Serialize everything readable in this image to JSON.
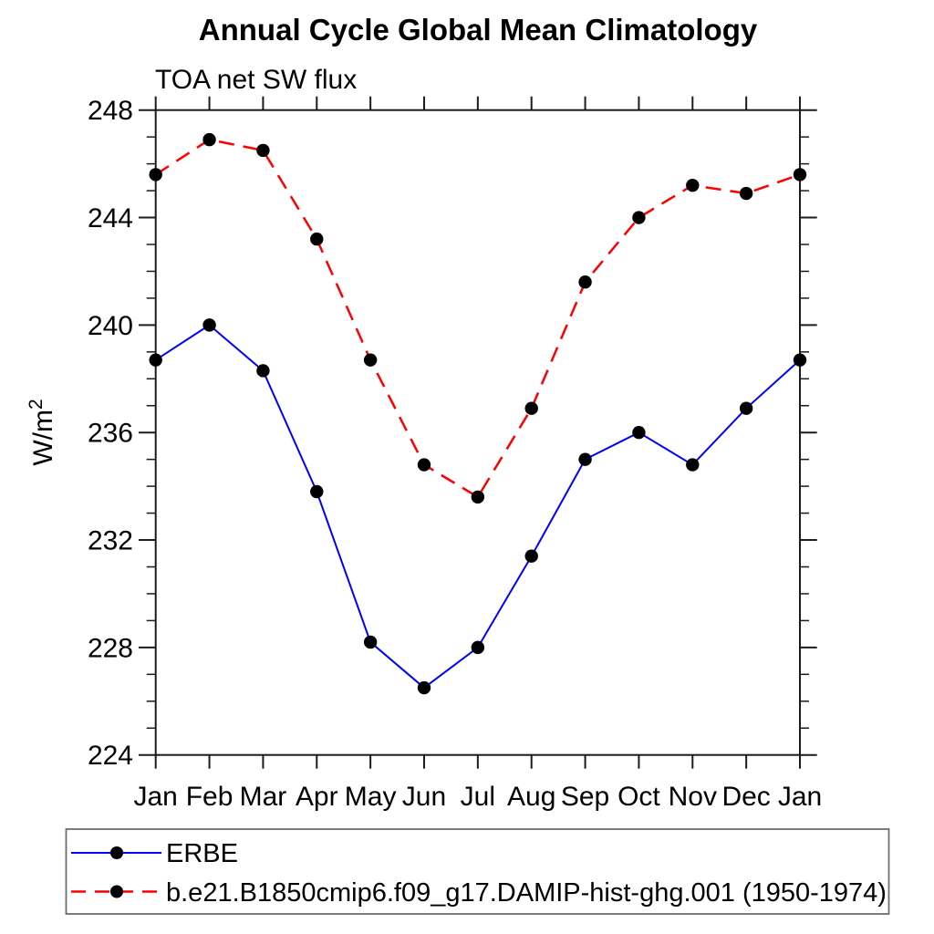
{
  "page": {
    "background": "#ffffff",
    "axis_color": "#1b1b1b",
    "legend_border_color": "#6e6e6e"
  },
  "chart_data": {
    "type": "line",
    "title": "Annual Cycle Global Mean Climatology",
    "subtitle": "TOA net SW flux",
    "ylabel": "W/m²",
    "ylabel_parts": {
      "base": "W/m",
      "exp": "2"
    },
    "categories": [
      "Jan",
      "Feb",
      "Mar",
      "Apr",
      "May",
      "Jun",
      "Jul",
      "Aug",
      "Sep",
      "Oct",
      "Nov",
      "Dec",
      "Jan"
    ],
    "ylim": [
      224,
      248
    ],
    "y_major_step": 4,
    "y_minor_step": 1,
    "y_ticklabels": [
      "224",
      "228",
      "232",
      "236",
      "240",
      "244",
      "248"
    ],
    "grid": "off",
    "legend_position": "bottom-left boxed",
    "marker": "filled-circle",
    "marker_color": "#000000",
    "series": [
      {
        "name": "ERBE",
        "color": "#0000ff",
        "style": "solid",
        "values": [
          238.7,
          240.0,
          238.3,
          233.8,
          228.2,
          226.5,
          228.0,
          231.4,
          235.0,
          236.0,
          234.8,
          236.9,
          238.7
        ]
      },
      {
        "name": "b.e21.B1850cmip6.f09_g17.DAMIP-hist-ghg.001 (1950-1974)",
        "color": "#ff0000",
        "style": "dashed",
        "values": [
          245.6,
          246.9,
          246.5,
          243.2,
          238.7,
          234.8,
          233.6,
          236.9,
          241.6,
          244.0,
          245.2,
          244.9,
          245.6
        ]
      }
    ]
  }
}
